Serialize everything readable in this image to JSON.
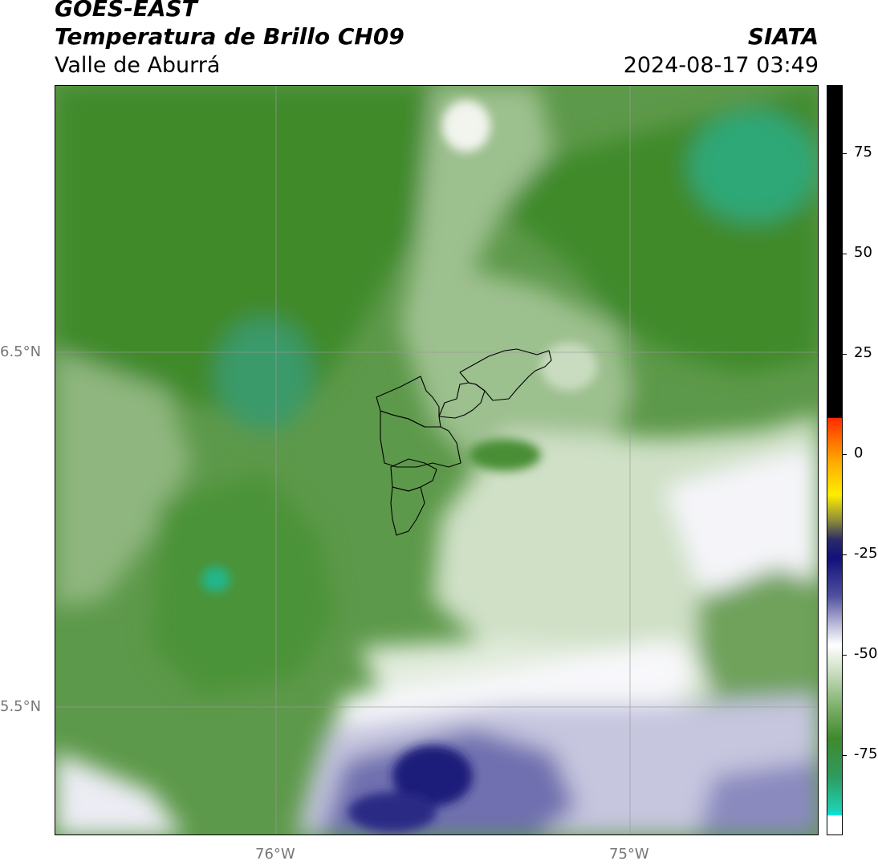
{
  "header": {
    "satellite": "GOES-EAST",
    "product": "Temperatura de Brillo CH09",
    "region": "Valle de Aburrá",
    "agency": "SIATA",
    "timestamp": "2024-08-17 03:49"
  },
  "map": {
    "lat_labels": [
      "6.5°N",
      "5.5°N"
    ],
    "lon_labels": [
      "76°W",
      "75°W"
    ],
    "colors": {
      "deep_green": "#3f8a2c",
      "green": "#5e9a4a",
      "light_green": "#9dc08f",
      "pale_green": "#cfe0c6",
      "teal": "#30a878",
      "white": "#f8f8fb",
      "lavender": "#c6c6df",
      "blue": "#6f6fb0",
      "navy": "#1c1c7a"
    }
  },
  "colorbar": {
    "tick_labels": [
      "75",
      "50",
      "25",
      "0",
      "-25",
      "-50",
      "-75"
    ],
    "tick_values": [
      75,
      50,
      25,
      0,
      -25,
      -50,
      -75
    ],
    "range": [
      -95,
      92
    ]
  }
}
